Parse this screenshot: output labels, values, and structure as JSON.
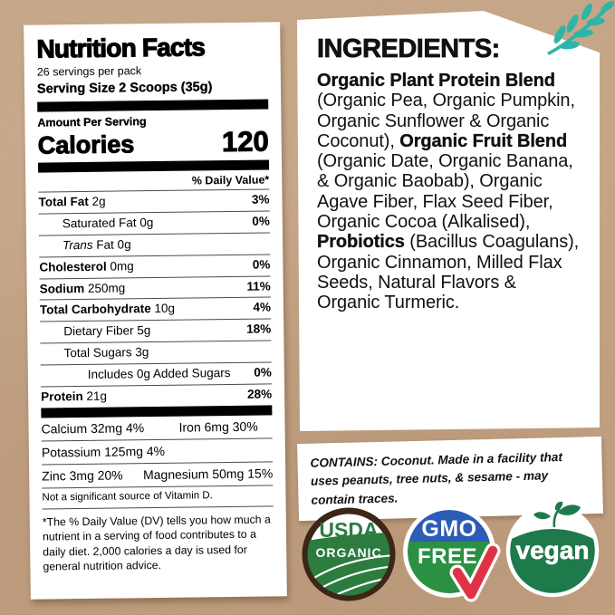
{
  "colors": {
    "kraft_background": "#c6a486",
    "accent_teal": "#2fb5a8",
    "usda_ring_brown": "#3b2617",
    "usda_green": "#2c7c3f",
    "gmo_blue": "#2d5cb7",
    "gmo_green": "#2c9043",
    "check_red": "#e03246",
    "vegan_green": "#1e7a4b"
  },
  "nutrition": {
    "title": "Nutrition Facts",
    "servings_per_pack": "26 servings per pack",
    "serving_size": "Serving Size 2 Scoops (35g)",
    "amount_per_serving": "Amount Per Serving",
    "calories_label": "Calories",
    "calories_value": "120",
    "daily_value_header": "% Daily Value*",
    "rows": [
      {
        "name": "Total Fat",
        "amount": "2g",
        "dv": "3%",
        "bold": true,
        "italic": false,
        "indent": 0
      },
      {
        "name": "Saturated Fat",
        "amount": "0g",
        "dv": "0%",
        "bold": false,
        "italic": false,
        "indent": 1
      },
      {
        "name": "Trans",
        "amount": "Fat 0g",
        "dv": "",
        "bold": false,
        "italic": true,
        "indent": 1
      },
      {
        "name": "Cholesterol",
        "amount": "0mg",
        "dv": "0%",
        "bold": true,
        "italic": false,
        "indent": 0
      },
      {
        "name": "Sodium",
        "amount": "250mg",
        "dv": "11%",
        "bold": true,
        "italic": false,
        "indent": 0
      },
      {
        "name": "Total Carbohydrate",
        "amount": "10g",
        "dv": "4%",
        "bold": true,
        "italic": false,
        "indent": 0
      },
      {
        "name": "Dietary Fiber",
        "amount": "5g",
        "dv": "18%",
        "bold": false,
        "italic": false,
        "indent": 1
      },
      {
        "name": "Total Sugars",
        "amount": "3g",
        "dv": "",
        "bold": false,
        "italic": false,
        "indent": 1
      },
      {
        "name": "Includes 0g Added Sugars",
        "amount": "",
        "dv": "0%",
        "bold": false,
        "italic": false,
        "indent": 2
      },
      {
        "name": "Protein",
        "amount": "21g",
        "dv": "28%",
        "bold": true,
        "italic": false,
        "indent": 0
      }
    ],
    "mineral_lines": [
      [
        {
          "text": "Calcium 32mg 4%",
          "width": 152
        },
        {
          "text": "Iron 6mg 30%"
        }
      ],
      [
        {
          "text": "Potassium 125mg 4%"
        }
      ],
      [
        {
          "text": "Zinc 3mg 20%",
          "width": 120
        },
        {
          "text": "Magnesium 50mg 15%"
        }
      ]
    ],
    "no_source_note": "Not a significant source of Vitamin D.",
    "footnote": "*The % Daily Value (DV) tells you how much a nutrient in a serving of food contributes to a daily diet. 2,000 calories a day is used for general nutrition advice."
  },
  "ingredients": {
    "title": "INGREDIENTS:",
    "segments": [
      {
        "text": "Organic Plant Protein Blend",
        "bold": true
      },
      {
        "text": " (Organic Pea, Organic Pumpkin, Organic Sunflower & Organic Coconut), ",
        "bold": false
      },
      {
        "text": "Organic Fruit Blend",
        "bold": true
      },
      {
        "text": " (Organic Date, Organic Banana, & Organic Baobab), Organic Agave Fiber, Flax Seed Fiber, Organic Cocoa (Alkalised), ",
        "bold": false
      },
      {
        "text": "Probiotics",
        "bold": true
      },
      {
        "text": " (Bacillus Coagulans), Organic Cinnamon, Milled Flax Seeds, Natural Flavors & Organic Turmeric.",
        "bold": false
      }
    ]
  },
  "contains": {
    "text": "CONTAINS: Coconut. Made in a facility that uses peanuts, tree nuts, & sesame - may contain traces."
  },
  "badges": {
    "usda": {
      "line1": "USDA",
      "line2": "ORGANIC"
    },
    "gmo": {
      "line1": "GMO",
      "line2": "FREE"
    },
    "vegan": {
      "label": "vegan"
    }
  }
}
